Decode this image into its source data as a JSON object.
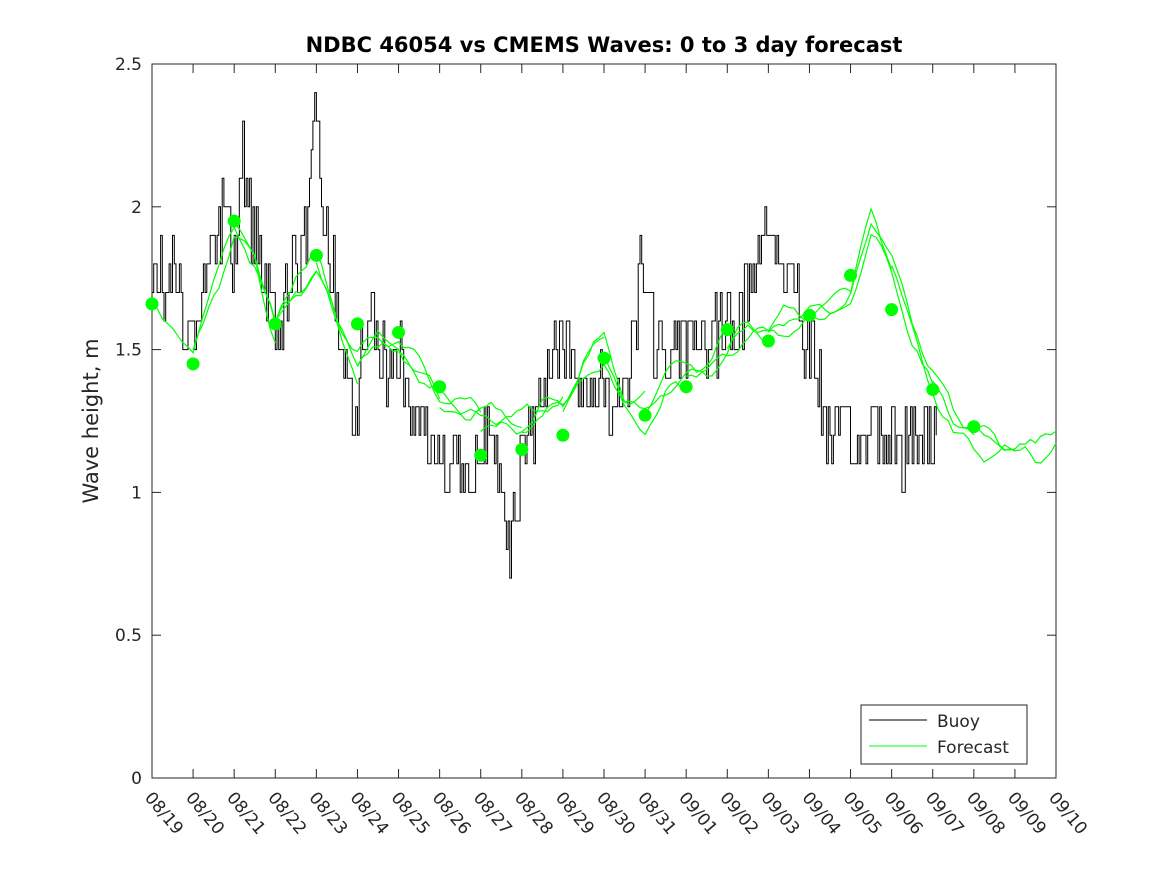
{
  "chart_data": {
    "type": "line",
    "title": "NDBC 46054 vs CMEMS Waves: 0 to 3 day forecast",
    "ylabel": "Wave height, m",
    "xlabel": "",
    "ylim": [
      0,
      2.5
    ],
    "yticks": [
      "0",
      "0.5",
      "1",
      "1.5",
      "2",
      "2.5"
    ],
    "xticks": [
      "08/19",
      "08/20",
      "08/21",
      "08/22",
      "08/23",
      "08/24",
      "08/25",
      "08/26",
      "08/27",
      "08/28",
      "08/29",
      "08/30",
      "08/31",
      "09/01",
      "09/02",
      "09/03",
      "09/04",
      "09/05",
      "09/06",
      "09/07",
      "09/08",
      "09/09",
      "09/10"
    ],
    "grid": false,
    "legend": {
      "position": "bottom-right",
      "entries": [
        {
          "label": "Buoy",
          "color": "#000000"
        },
        {
          "label": "Forecast",
          "color": "#00ff00"
        }
      ]
    },
    "colors": {
      "buoy": "#000000",
      "forecast": "#00ff00",
      "forecast_start": "#00ff00"
    },
    "series": [
      {
        "name": "Buoy",
        "anchors": [
          [
            0.0,
            1.65
          ],
          [
            0.15,
            1.8
          ],
          [
            0.3,
            1.7
          ],
          [
            0.5,
            1.8
          ],
          [
            0.7,
            1.6
          ],
          [
            0.9,
            1.5
          ],
          [
            1.0,
            1.55
          ],
          [
            1.1,
            1.65
          ],
          [
            1.3,
            1.75
          ],
          [
            1.5,
            1.9
          ],
          [
            1.6,
            1.85
          ],
          [
            1.8,
            2.05
          ],
          [
            2.0,
            1.8
          ],
          [
            2.1,
            2.0
          ],
          [
            2.2,
            2.15
          ],
          [
            2.3,
            2.05
          ],
          [
            2.5,
            1.85
          ],
          [
            2.7,
            1.75
          ],
          [
            2.9,
            1.7
          ],
          [
            3.0,
            1.55
          ],
          [
            3.2,
            1.65
          ],
          [
            3.4,
            1.8
          ],
          [
            3.6,
            1.75
          ],
          [
            3.8,
            2.0
          ],
          [
            3.9,
            2.3
          ],
          [
            3.95,
            2.45
          ],
          [
            4.05,
            2.15
          ],
          [
            4.2,
            1.9
          ],
          [
            4.3,
            1.8
          ],
          [
            4.5,
            1.7
          ],
          [
            4.6,
            1.55
          ],
          [
            4.8,
            1.35
          ],
          [
            5.0,
            1.35
          ],
          [
            5.1,
            1.5
          ],
          [
            5.3,
            1.6
          ],
          [
            5.5,
            1.5
          ],
          [
            5.7,
            1.45
          ],
          [
            5.9,
            1.55
          ],
          [
            6.1,
            1.45
          ],
          [
            6.3,
            1.3
          ],
          [
            6.6,
            1.25
          ],
          [
            6.8,
            1.15
          ],
          [
            7.0,
            1.1
          ],
          [
            7.2,
            1.05
          ],
          [
            7.4,
            1.2
          ],
          [
            7.5,
            1.05
          ],
          [
            7.7,
            1.05
          ],
          [
            7.9,
            1.15
          ],
          [
            8.1,
            1.25
          ],
          [
            8.3,
            1.1
          ],
          [
            8.5,
            1.0
          ],
          [
            8.7,
            0.85
          ],
          [
            8.9,
            1.05
          ],
          [
            9.1,
            1.15
          ],
          [
            9.3,
            1.25
          ],
          [
            9.5,
            1.35
          ],
          [
            9.7,
            1.5
          ],
          [
            9.9,
            1.55
          ],
          [
            10.0,
            1.55
          ],
          [
            10.2,
            1.45
          ],
          [
            10.4,
            1.35
          ],
          [
            10.6,
            1.3
          ],
          [
            10.8,
            1.35
          ],
          [
            11.0,
            1.4
          ],
          [
            11.2,
            1.3
          ],
          [
            11.4,
            1.35
          ],
          [
            11.6,
            1.45
          ],
          [
            11.8,
            1.65
          ],
          [
            11.9,
            1.9
          ],
          [
            12.0,
            1.75
          ],
          [
            12.2,
            1.55
          ],
          [
            12.4,
            1.45
          ],
          [
            12.6,
            1.45
          ],
          [
            12.8,
            1.5
          ],
          [
            13.0,
            1.55
          ],
          [
            13.2,
            1.6
          ],
          [
            13.4,
            1.55
          ],
          [
            13.6,
            1.5
          ],
          [
            13.8,
            1.55
          ],
          [
            14.0,
            1.6
          ],
          [
            14.2,
            1.6
          ],
          [
            14.4,
            1.65
          ],
          [
            14.6,
            1.75
          ],
          [
            14.8,
            1.85
          ],
          [
            15.0,
            1.95
          ],
          [
            15.2,
            1.85
          ],
          [
            15.4,
            1.75
          ],
          [
            15.6,
            1.8
          ],
          [
            15.8,
            1.6
          ],
          [
            16.0,
            1.5
          ],
          [
            16.2,
            1.4
          ],
          [
            16.4,
            1.25
          ],
          [
            16.6,
            1.15
          ],
          [
            16.8,
            1.2
          ],
          [
            17.0,
            1.2
          ],
          [
            17.2,
            1.1
          ],
          [
            17.4,
            1.2
          ],
          [
            17.6,
            1.25
          ],
          [
            17.8,
            1.2
          ],
          [
            18.0,
            1.2
          ],
          [
            18.2,
            1.15
          ],
          [
            18.4,
            1.15
          ],
          [
            18.6,
            1.2
          ],
          [
            18.8,
            1.25
          ],
          [
            19.0,
            1.2
          ],
          [
            19.1,
            1.2
          ]
        ]
      }
    ],
    "forecast_starts": [
      {
        "x": 0.0,
        "y": 1.66
      },
      {
        "x": 1.0,
        "y": 1.45
      },
      {
        "x": 2.0,
        "y": 1.95
      },
      {
        "x": 3.0,
        "y": 1.59
      },
      {
        "x": 4.0,
        "y": 1.83
      },
      {
        "x": 5.0,
        "y": 1.59
      },
      {
        "x": 6.0,
        "y": 1.56
      },
      {
        "x": 7.0,
        "y": 1.37
      },
      {
        "x": 8.0,
        "y": 1.13
      },
      {
        "x": 9.0,
        "y": 1.15
      },
      {
        "x": 10.0,
        "y": 1.2
      },
      {
        "x": 11.0,
        "y": 1.47
      },
      {
        "x": 12.0,
        "y": 1.27
      },
      {
        "x": 13.0,
        "y": 1.37
      },
      {
        "x": 14.0,
        "y": 1.57
      },
      {
        "x": 15.0,
        "y": 1.53
      },
      {
        "x": 16.0,
        "y": 1.62
      },
      {
        "x": 17.0,
        "y": 1.76
      },
      {
        "x": 18.0,
        "y": 1.64
      },
      {
        "x": 19.0,
        "y": 1.36
      },
      {
        "x": 20.0,
        "y": 1.23
      }
    ],
    "forecast_path": [
      [
        0,
        1.66
      ],
      [
        0.5,
        1.6
      ],
      [
        1,
        1.5
      ],
      [
        1.5,
        1.75
      ],
      [
        2,
        1.95
      ],
      [
        2.5,
        1.85
      ],
      [
        3,
        1.6
      ],
      [
        3.5,
        1.75
      ],
      [
        4,
        1.8
      ],
      [
        4.5,
        1.6
      ],
      [
        5,
        1.45
      ],
      [
        5.5,
        1.5
      ],
      [
        6,
        1.5
      ],
      [
        6.5,
        1.38
      ],
      [
        7,
        1.3
      ],
      [
        7.5,
        1.25
      ],
      [
        8,
        1.22
      ],
      [
        8.5,
        1.22
      ],
      [
        9,
        1.2
      ],
      [
        9.5,
        1.25
      ],
      [
        10,
        1.28
      ],
      [
        10.5,
        1.42
      ],
      [
        11,
        1.48
      ],
      [
        11.5,
        1.3
      ],
      [
        12,
        1.28
      ],
      [
        12.5,
        1.36
      ],
      [
        13,
        1.4
      ],
      [
        13.5,
        1.42
      ],
      [
        14,
        1.5
      ],
      [
        14.5,
        1.58
      ],
      [
        15,
        1.56
      ],
      [
        15.5,
        1.6
      ],
      [
        16,
        1.62
      ],
      [
        16.5,
        1.62
      ],
      [
        17,
        1.7
      ],
      [
        17.5,
        1.95
      ],
      [
        18,
        1.8
      ],
      [
        18.5,
        1.6
      ],
      [
        19,
        1.4
      ],
      [
        19.5,
        1.25
      ],
      [
        20,
        1.22
      ],
      [
        20.5,
        1.2
      ],
      [
        21,
        1.18
      ],
      [
        21.5,
        1.15
      ],
      [
        22,
        1.25
      ]
    ],
    "forecast_runs": [
      {
        "start": 0.0,
        "days": 3
      },
      {
        "start": 1.0,
        "days": 3
      },
      {
        "start": 2.0,
        "days": 3
      },
      {
        "start": 3.0,
        "days": 3
      },
      {
        "start": 4.0,
        "days": 3
      },
      {
        "start": 5.0,
        "days": 3
      },
      {
        "start": 6.0,
        "days": 3
      },
      {
        "start": 7.0,
        "days": 3
      },
      {
        "start": 8.0,
        "days": 3
      },
      {
        "start": 9.0,
        "days": 3
      },
      {
        "start": 10.0,
        "days": 3
      },
      {
        "start": 11.0,
        "days": 3
      },
      {
        "start": 12.0,
        "days": 3
      },
      {
        "start": 13.0,
        "days": 3
      },
      {
        "start": 14.0,
        "days": 3
      },
      {
        "start": 15.0,
        "days": 3
      },
      {
        "start": 16.0,
        "days": 3
      },
      {
        "start": 17.0,
        "days": 3
      },
      {
        "start": 18.0,
        "days": 3
      },
      {
        "start": 19.0,
        "days": 3
      },
      {
        "start": 20.0,
        "days": 2
      }
    ]
  }
}
